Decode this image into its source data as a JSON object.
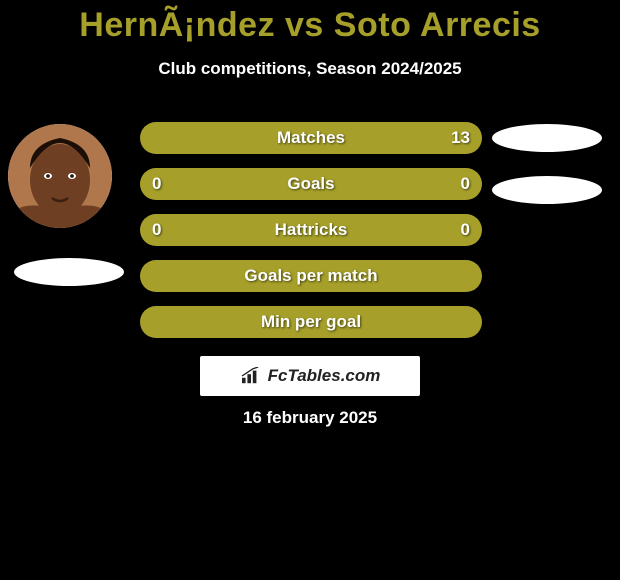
{
  "title_color": "#a6a02a",
  "title_parts": {
    "player_a": "HernÃ¡ndez",
    "vs": " vs ",
    "player_b": "Soto Arrecis"
  },
  "subtitle": "Club competitions, Season 2024/2025",
  "row_color": "#a6a02a",
  "rows": [
    {
      "label": "Matches",
      "left": "",
      "right": "13"
    },
    {
      "label": "Goals",
      "left": "0",
      "right": "0"
    },
    {
      "label": "Hattricks",
      "left": "0",
      "right": "0"
    },
    {
      "label": "Goals per match",
      "left": "",
      "right": ""
    },
    {
      "label": "Min per goal",
      "left": "",
      "right": ""
    }
  ],
  "logo_text": "FcTables.com",
  "date_text": "16 february 2025",
  "avatar": {
    "bg": "#b0774c",
    "face": "#6e3f22",
    "hair": "#1a0e06"
  },
  "marker_color": "#ffffff",
  "background_color": "#000000"
}
